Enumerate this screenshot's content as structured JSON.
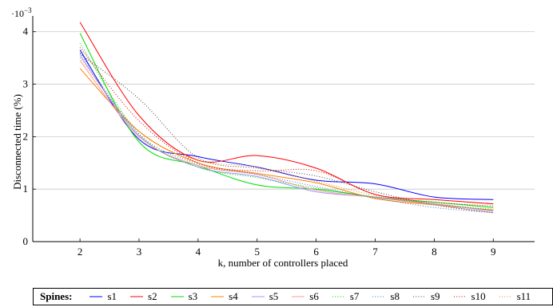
{
  "chart_data": {
    "type": "line",
    "title": "",
    "xlabel": "k, number of controllers placed",
    "ylabel": "Disconnected time (%)",
    "y_scale_label": "·10",
    "y_scale_exponent": "−3",
    "xlim": [
      1.2,
      9.7
    ],
    "ylim": [
      0,
      4.3
    ],
    "x_ticks": [
      2,
      3,
      4,
      5,
      6,
      7,
      8,
      9
    ],
    "y_ticks": [
      0,
      1,
      2,
      3,
      4
    ],
    "grid": "horizontal",
    "legend_title": "Spines:",
    "legend_position": "bottom",
    "series": [
      {
        "name": "s1",
        "color": "#0000ff",
        "dash": "solid",
        "x": [
          2,
          3,
          4,
          5,
          6,
          7,
          8,
          9
        ],
        "y": [
          3.65,
          1.95,
          1.62,
          1.42,
          1.17,
          1.1,
          0.85,
          0.8
        ]
      },
      {
        "name": "s2",
        "color": "#ff0000",
        "dash": "solid",
        "x": [
          2,
          3,
          4,
          5,
          6,
          7,
          8,
          9
        ],
        "y": [
          4.18,
          2.4,
          1.55,
          1.64,
          1.4,
          0.9,
          0.8,
          0.72
        ]
      },
      {
        "name": "s3",
        "color": "#00dd00",
        "dash": "solid",
        "x": [
          2,
          3,
          4,
          5,
          6,
          7,
          8,
          9
        ],
        "y": [
          3.97,
          1.9,
          1.45,
          1.08,
          1.0,
          0.85,
          0.75,
          0.65
        ]
      },
      {
        "name": "s4",
        "color": "#ff8000",
        "dash": "solid",
        "x": [
          2,
          3,
          4,
          5,
          6,
          7,
          8,
          9
        ],
        "y": [
          3.3,
          2.1,
          1.5,
          1.3,
          1.12,
          0.82,
          0.7,
          0.6
        ]
      },
      {
        "name": "s5",
        "color": "#9999ff",
        "dash": "solid",
        "x": [
          2,
          3,
          4,
          5,
          6,
          7,
          8,
          9
        ],
        "y": [
          3.55,
          2.02,
          1.42,
          1.24,
          0.95,
          0.85,
          0.72,
          0.58
        ]
      },
      {
        "name": "s6",
        "color": "#ff9999",
        "dash": "solid",
        "x": [
          2,
          3,
          4,
          5,
          6,
          7,
          8,
          9
        ],
        "y": [
          3.45,
          2.0,
          1.45,
          1.28,
          0.98,
          0.84,
          0.7,
          0.55
        ]
      },
      {
        "name": "s7",
        "color": "#00cc00",
        "dash": "dotted",
        "x": [
          2,
          3,
          4,
          5,
          6,
          7,
          8,
          9
        ],
        "y": [
          3.78,
          2.05,
          1.42,
          1.22,
          1.02,
          0.85,
          0.72,
          0.6
        ]
      },
      {
        "name": "s8",
        "color": "#3377cc",
        "dash": "dotted",
        "x": [
          2,
          3,
          4,
          5,
          6,
          7,
          8,
          9
        ],
        "y": [
          3.6,
          2.05,
          1.48,
          1.28,
          1.05,
          0.83,
          0.65,
          0.55
        ]
      },
      {
        "name": "s9",
        "color": "#444444",
        "dash": "dotted",
        "x": [
          2,
          3,
          4,
          5,
          6,
          7,
          8,
          9
        ],
        "y": [
          3.58,
          2.72,
          1.6,
          1.4,
          1.25,
          0.95,
          0.7,
          0.55
        ]
      },
      {
        "name": "s10",
        "color": "#dd0000",
        "dash": "dotted",
        "x": [
          2,
          3,
          4,
          5,
          6,
          7,
          8,
          9
        ],
        "y": [
          3.7,
          2.3,
          1.5,
          1.35,
          1.35,
          0.9,
          0.75,
          0.68
        ]
      },
      {
        "name": "s11",
        "color": "#ee8800",
        "dash": "dotted",
        "x": [
          2,
          3,
          4,
          5,
          6,
          7,
          8,
          9
        ],
        "y": [
          3.5,
          2.1,
          1.55,
          1.42,
          1.15,
          0.88,
          0.72,
          0.62
        ]
      }
    ]
  }
}
